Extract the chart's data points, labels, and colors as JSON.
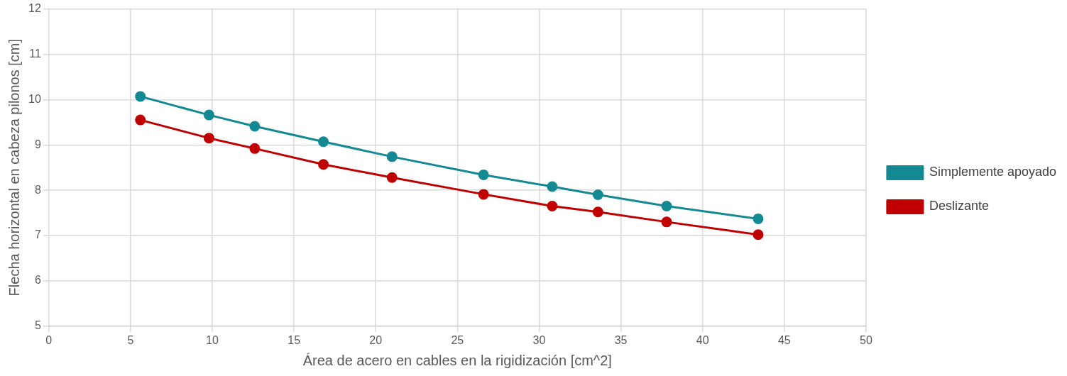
{
  "chart_data": {
    "type": "line",
    "xlabel": "Área de acero en cables en la rigidización [cm^2]",
    "ylabel": "Flecha horizontal en cabeza pilonos [cm]",
    "x": [
      5.6,
      9.8,
      12.6,
      16.8,
      21.0,
      26.6,
      30.8,
      33.6,
      37.8,
      43.4
    ],
    "series": [
      {
        "name": "Simplemente apoyado",
        "color": "#138a93",
        "values": [
          10.07,
          9.66,
          9.41,
          9.07,
          8.74,
          8.34,
          8.08,
          7.9,
          7.65,
          7.37
        ]
      },
      {
        "name": "Deslizante",
        "color": "#c00000",
        "values": [
          9.55,
          9.15,
          8.92,
          8.57,
          8.28,
          7.91,
          7.65,
          7.52,
          7.3,
          7.02
        ]
      }
    ],
    "xlim": [
      0,
      50
    ],
    "xticks": [
      0,
      5,
      10,
      15,
      20,
      25,
      30,
      35,
      40,
      45,
      50
    ],
    "ylim": [
      5,
      12
    ],
    "yticks": [
      5,
      6,
      7,
      8,
      9,
      10,
      11,
      12
    ],
    "grid": true,
    "legend": "right",
    "marker": "circle",
    "line_style": "solid"
  }
}
